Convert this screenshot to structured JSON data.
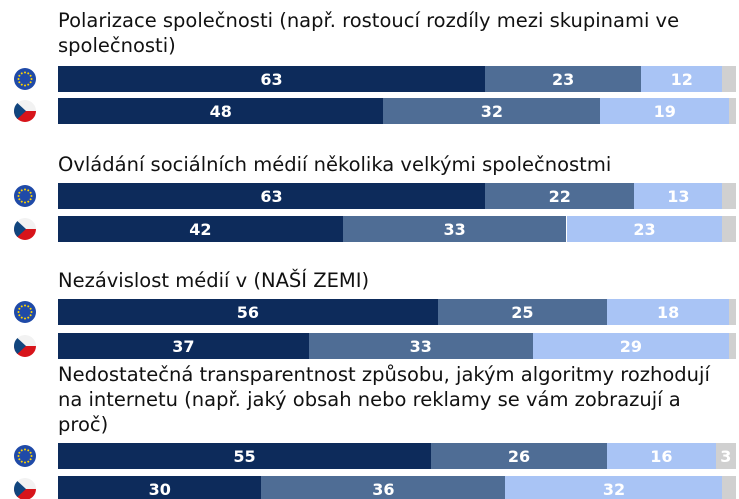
{
  "chart_data": {
    "type": "stacked-bar-horizontal",
    "group_titles": [
      "Polarizace společnosti (např. rostoucí rozdíly mezi skupinami ve společnosti)",
      "Ovládání sociálních médií několika velkými společnostmi",
      "Nezávislost médií v (NAŠÍ ZEMI)",
      "Nedostatečná transparentnost způsobu, jakým algoritmy rozhodují na internetu (např. jaký obsah nebo reklamy se vám zobrazují a proč)"
    ],
    "flags": [
      "eu",
      "cz",
      "eu",
      "cz",
      "eu",
      "cz",
      "eu",
      "cz"
    ],
    "xlim": [
      0,
      100
    ],
    "series": [
      {
        "color": "#0d2b5b",
        "values": [
          63,
          48,
          63,
          42,
          56,
          37,
          55,
          30
        ]
      },
      {
        "color": "#4f6d95",
        "values": [
          23,
          32,
          22,
          33,
          25,
          33,
          26,
          36
        ]
      },
      {
        "color": "#a9c4f5",
        "values": [
          12,
          19,
          13,
          23,
          18,
          29,
          16,
          32
        ]
      },
      {
        "color": "#d0d0d0",
        "values": [
          2,
          1,
          2,
          2,
          1,
          1,
          3,
          2
        ],
        "value_labels": [
          null,
          null,
          null,
          null,
          null,
          null,
          "3",
          null
        ]
      }
    ]
  }
}
